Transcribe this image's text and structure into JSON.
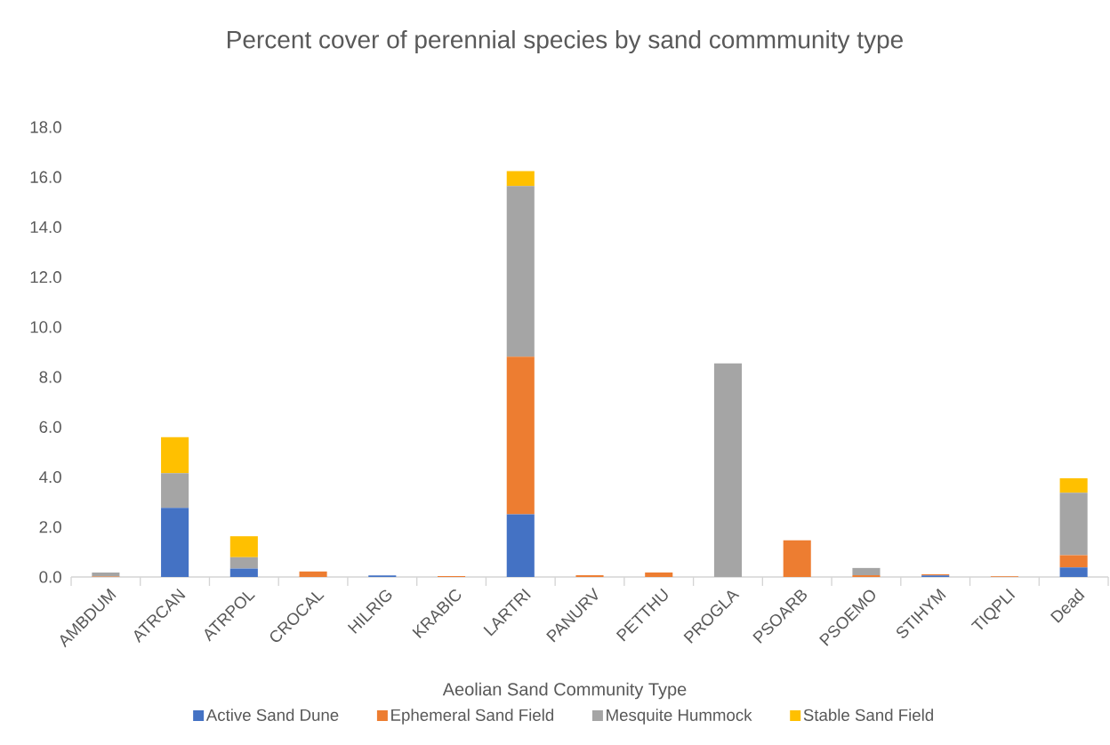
{
  "chart_data": {
    "type": "bar",
    "stacked": true,
    "title": "Percent cover of perennial species by sand commmunity type",
    "xlabel": "Aeolian Sand Community Type",
    "legend": "bottom",
    "categories": [
      "AMBDUM",
      "ATRCAN",
      "ATRPOL",
      "CROCAL",
      "HILRIG",
      "KRABIC",
      "LARTRI",
      "PANURV",
      "PETTHU",
      "PROGLA",
      "PSOARB",
      "PSOEMO",
      "STIHYM",
      "TIQPLI",
      "Dead"
    ],
    "series": [
      {
        "name": "Active Sand Dune",
        "color": "#4472c4",
        "values": [
          0,
          2.77,
          0.34,
          0,
          0.06,
          0,
          2.51,
          0,
          0,
          0,
          0,
          0,
          0.06,
          0,
          0.38
        ]
      },
      {
        "name": "Ephemeral Sand Field",
        "color": "#ed7d31",
        "values": [
          0.02,
          0,
          0,
          0.22,
          0,
          0.04,
          6.3,
          0.07,
          0.18,
          0,
          1.47,
          0.07,
          0.05,
          0.03,
          0.49
        ]
      },
      {
        "name": "Mesquite Hummock",
        "color": "#a5a5a5",
        "values": [
          0.16,
          1.38,
          0.45,
          0,
          0,
          0,
          6.83,
          0,
          0,
          8.55,
          0,
          0.29,
          0,
          0,
          2.5
        ]
      },
      {
        "name": "Stable Sand Field",
        "color": "#ffc000",
        "values": [
          0,
          1.44,
          0.84,
          0,
          0,
          0,
          0.6,
          0,
          0,
          0,
          0,
          0,
          0,
          0,
          0.58
        ]
      }
    ],
    "ylim": [
      0,
      18
    ],
    "yticks": [
      {
        "value": 0,
        "label": "0.0"
      },
      {
        "value": 2,
        "label": "2.0"
      },
      {
        "value": 4,
        "label": "4.0"
      },
      {
        "value": 6,
        "label": "6.0"
      },
      {
        "value": 8,
        "label": "8.0"
      },
      {
        "value": 10,
        "label": "10.0"
      },
      {
        "value": 12,
        "label": "12.0"
      },
      {
        "value": 14,
        "label": "14.0"
      },
      {
        "value": 16,
        "label": "16.0"
      },
      {
        "value": 18,
        "label": "18.0"
      }
    ]
  }
}
